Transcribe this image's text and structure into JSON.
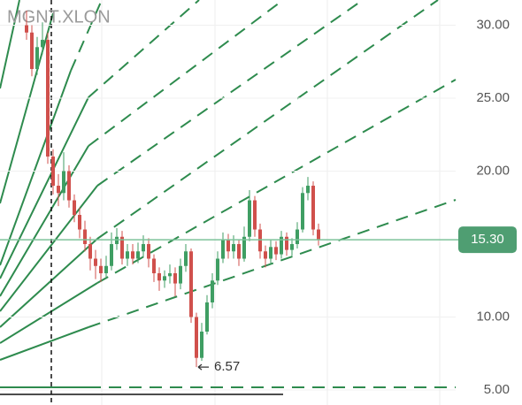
{
  "chart_data": {
    "type": "candlestick",
    "title": "MGNT.XLON",
    "up_color": "#3f9e63",
    "down_color": "#d0504c",
    "open": [
      30,
      29.5,
      27,
      28.5,
      29,
      21,
      19,
      18.5,
      20,
      18,
      17,
      16,
      15,
      14,
      13.5,
      13,
      13.5,
      15,
      15.5,
      14,
      14.5,
      14,
      14.5,
      15,
      14,
      13,
      12.5,
      12.8,
      13,
      12.3,
      13.5,
      14.5,
      10,
      7.2,
      9,
      11,
      12.5,
      14,
      15.3,
      14.5,
      15,
      14,
      15.5,
      18,
      16,
      14.5,
      14,
      14.8,
      14.3,
      15.5,
      14.6,
      15,
      16,
      18.5,
      19,
      16
    ],
    "high": [
      31,
      30,
      29.2,
      30.2,
      29.5,
      21.5,
      19.8,
      21.3,
      20.4,
      18.4,
      17.5,
      16.6,
      15.5,
      14.6,
      14,
      14.2,
      15.8,
      16.1,
      15.9,
      15,
      15,
      15.1,
      15.6,
      15.4,
      14.3,
      13.4,
      13.2,
      13.6,
      13.4,
      14,
      15,
      14.7,
      10.3,
      9.6,
      11.5,
      13,
      14.5,
      15.8,
      15.7,
      15.6,
      15.3,
      16.2,
      18.7,
      18.3,
      16.4,
      14.9,
      15.3,
      15.2,
      15.9,
      15.8,
      15.4,
      16.5,
      18.9,
      19.6,
      19.3,
      16.4
    ],
    "low": [
      29,
      26.5,
      26.6,
      28,
      20.5,
      18.4,
      17.6,
      18,
      17.5,
      16.5,
      15.4,
      14.5,
      13.2,
      12.6,
      12.4,
      12.6,
      13.2,
      14.6,
      13.6,
      13.5,
      13.6,
      13.7,
      14.1,
      13.4,
      12.4,
      11.8,
      12,
      12.3,
      11.4,
      11.9,
      13.1,
      9.6,
      6.57,
      7,
      8.8,
      10.6,
      12.2,
      13.7,
      14,
      14,
      13.5,
      13.8,
      15.2,
      15.5,
      14,
      13.4,
      13.6,
      13.9,
      14,
      14.2,
      14.2,
      14.7,
      15.8,
      18,
      15.6,
      14.9
    ],
    "close": [
      29.5,
      27,
      28.5,
      29,
      21,
      19,
      18.5,
      20,
      18,
      17,
      16,
      15,
      14,
      13.5,
      13,
      13.5,
      15,
      15.5,
      14,
      14.5,
      14,
      14.5,
      15,
      14,
      13,
      12.5,
      12.8,
      13,
      12.3,
      13.5,
      14.5,
      10,
      7.2,
      9,
      11,
      12.5,
      14,
      15.3,
      14.5,
      15,
      14,
      15.5,
      18,
      16,
      14.5,
      14,
      14.8,
      14.3,
      15.5,
      14.6,
      15,
      16,
      18.5,
      19,
      16,
      15.3
    ],
    "ylim": [
      3.97,
      31.73
    ],
    "yticks": [
      {
        "value": 5,
        "label": "5.00"
      },
      {
        "value": 10,
        "label": "10.00"
      },
      {
        "value": 20,
        "label": "20.00"
      },
      {
        "value": 25,
        "label": "25.00"
      },
      {
        "value": 30,
        "label": "30.00"
      }
    ],
    "last_price": {
      "value": 15.3,
      "label": "15.30"
    },
    "low_annotation": {
      "value": 6.57,
      "label": "6.57"
    }
  }
}
